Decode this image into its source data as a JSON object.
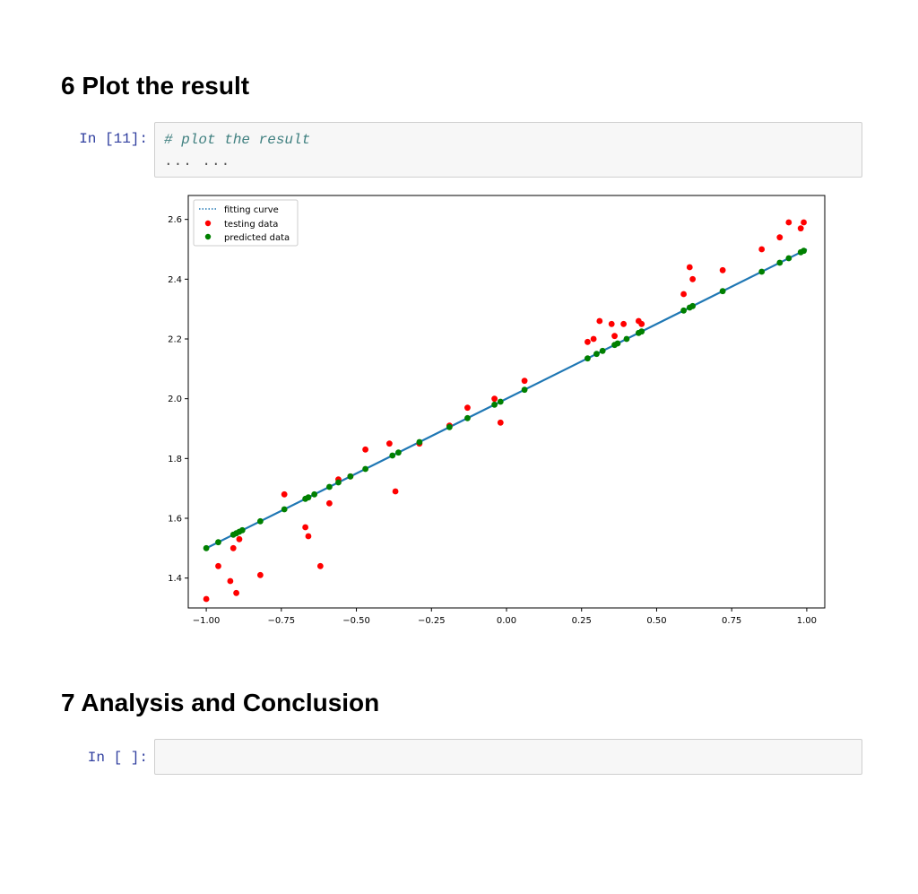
{
  "section6": {
    "title": "6 Plot the result"
  },
  "cell11": {
    "prompt": "In [11]:",
    "code_comment": "# plot the result",
    "collapsed_indicator": "... ..."
  },
  "section7": {
    "title": "7 Analysis and Conclusion"
  },
  "cell_empty": {
    "prompt": "In [ ]:",
    "value": ""
  },
  "chart_data": {
    "type": "scatter",
    "title": "",
    "xlabel": "",
    "ylabel": "",
    "xlim": [
      -1.06,
      1.06
    ],
    "ylim": [
      1.3,
      2.68
    ],
    "xticks": [
      -1.0,
      -0.75,
      -0.5,
      -0.25,
      0.0,
      0.25,
      0.5,
      0.75,
      1.0
    ],
    "xtick_labels": [
      "−1.00",
      "−0.75",
      "−0.50",
      "−0.25",
      "0.00",
      "0.25",
      "0.50",
      "0.75",
      "1.00"
    ],
    "yticks": [
      1.4,
      1.6,
      1.8,
      2.0,
      2.2,
      2.4,
      2.6
    ],
    "ytick_labels": [
      "1.4",
      "1.6",
      "1.8",
      "2.0",
      "2.2",
      "2.4",
      "2.6"
    ],
    "grid": false,
    "legend_position": "top-left",
    "colors": {
      "fitting_curve": "#1f77b4",
      "testing_data": "#ff0000",
      "predicted_data": "#008000"
    },
    "series": [
      {
        "name": "fitting curve",
        "style": "dotted-line",
        "x": [
          -1.0,
          1.0
        ],
        "y": [
          1.5,
          2.5
        ]
      },
      {
        "name": "testing data",
        "style": "marker",
        "x": [
          -1.0,
          -0.96,
          -0.92,
          -0.91,
          -0.9,
          -0.89,
          -0.82,
          -0.74,
          -0.67,
          -0.66,
          -0.62,
          -0.59,
          -0.56,
          -0.52,
          -0.47,
          -0.39,
          -0.37,
          -0.29,
          -0.19,
          -0.13,
          -0.04,
          -0.02,
          0.06,
          0.27,
          0.29,
          0.31,
          0.35,
          0.36,
          0.39,
          0.44,
          0.45,
          0.59,
          0.61,
          0.62,
          0.72,
          0.85,
          0.91,
          0.94,
          0.98,
          0.99
        ],
        "y": [
          1.33,
          1.44,
          1.39,
          1.5,
          1.35,
          1.53,
          1.41,
          1.68,
          1.57,
          1.54,
          1.44,
          1.65,
          1.73,
          1.74,
          1.83,
          1.85,
          1.69,
          1.85,
          1.91,
          1.97,
          2.0,
          1.92,
          2.06,
          2.19,
          2.2,
          2.26,
          2.25,
          2.21,
          2.25,
          2.26,
          2.25,
          2.35,
          2.44,
          2.4,
          2.43,
          2.5,
          2.54,
          2.59,
          2.57,
          2.59
        ]
      },
      {
        "name": "predicted data",
        "style": "marker",
        "x": [
          -1.0,
          -0.96,
          -0.91,
          -0.9,
          -0.89,
          -0.88,
          -0.82,
          -0.74,
          -0.67,
          -0.66,
          -0.64,
          -0.59,
          -0.56,
          -0.52,
          -0.47,
          -0.38,
          -0.36,
          -0.29,
          -0.19,
          -0.13,
          -0.04,
          -0.02,
          0.06,
          0.27,
          0.3,
          0.32,
          0.36,
          0.37,
          0.4,
          0.44,
          0.45,
          0.59,
          0.61,
          0.62,
          0.72,
          0.85,
          0.91,
          0.94,
          0.98,
          0.99
        ],
        "y": [
          1.5,
          1.52,
          1.545,
          1.55,
          1.555,
          1.56,
          1.59,
          1.63,
          1.665,
          1.67,
          1.68,
          1.705,
          1.72,
          1.74,
          1.765,
          1.81,
          1.82,
          1.855,
          1.905,
          1.935,
          1.98,
          1.99,
          2.03,
          2.135,
          2.15,
          2.16,
          2.18,
          2.185,
          2.2,
          2.22,
          2.225,
          2.295,
          2.305,
          2.31,
          2.36,
          2.425,
          2.455,
          2.47,
          2.49,
          2.495
        ]
      }
    ]
  }
}
